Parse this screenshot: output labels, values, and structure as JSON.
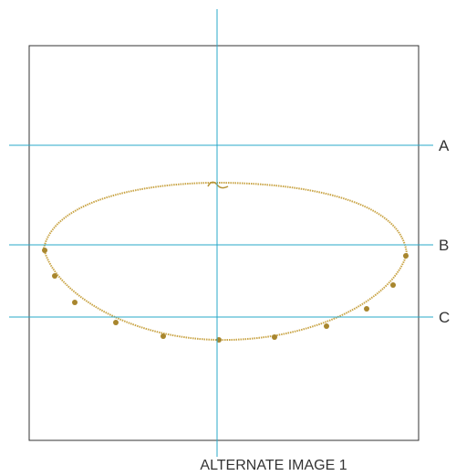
{
  "guides": [
    {
      "label": "A"
    },
    {
      "label": "B"
    },
    {
      "label": "C"
    }
  ],
  "caption": "ALTERNATE IMAGE 1"
}
